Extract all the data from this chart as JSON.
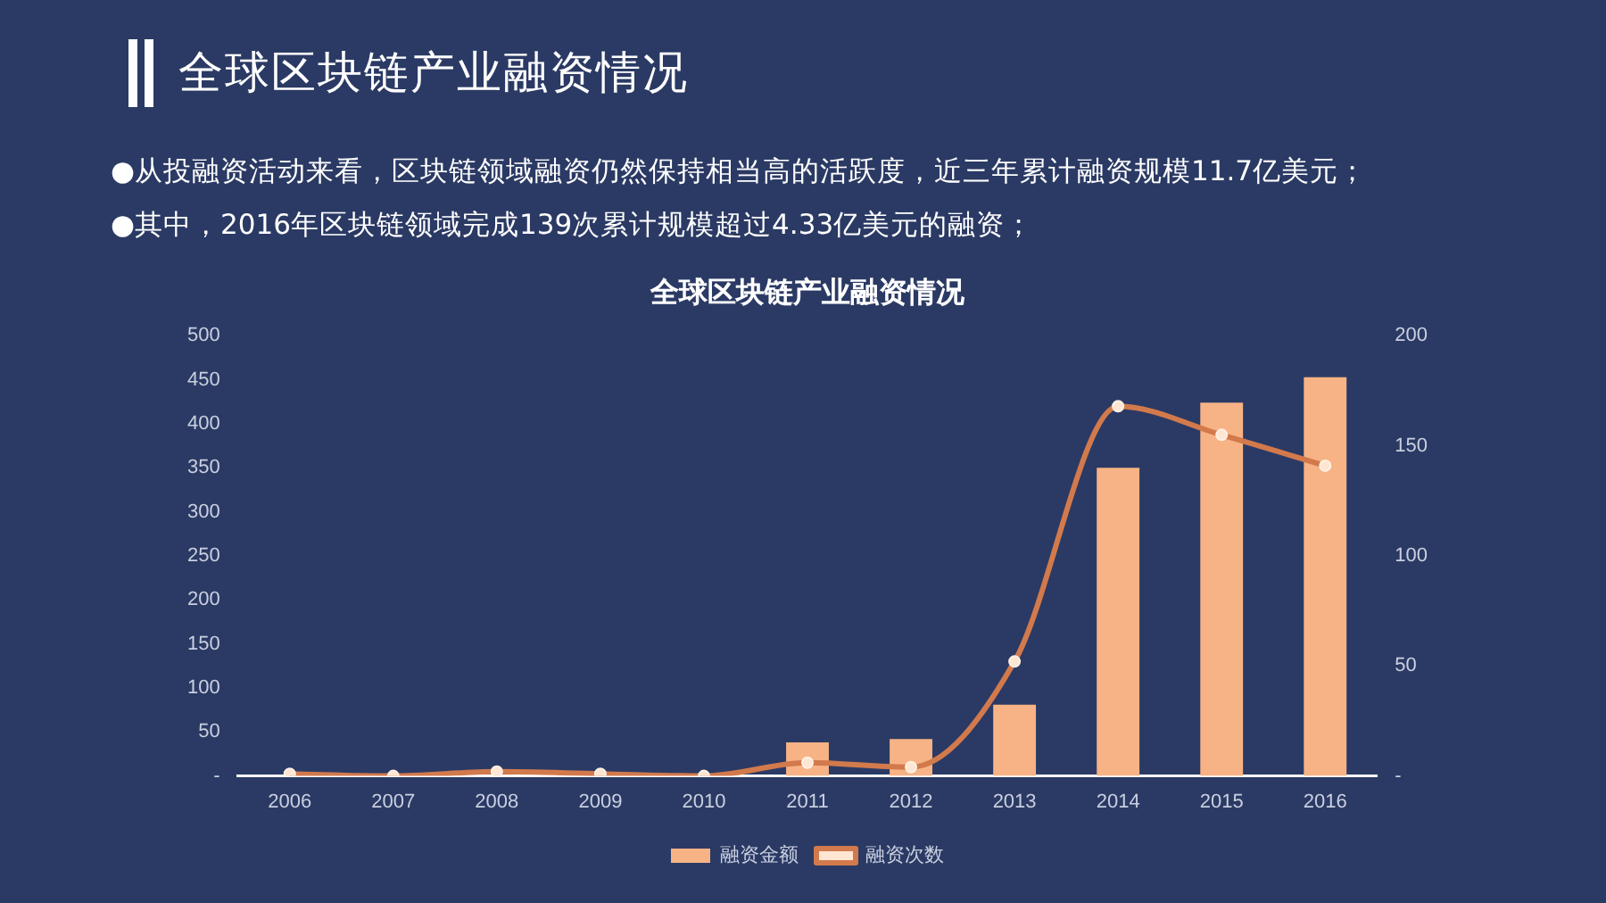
{
  "chart_data": {
    "type": "bar",
    "title": "全球区块链产业融资情况",
    "annotations": [
      "全球区块链产业融资情况",
      "●从投融资活动来看，区块链领域融资仍然保持相当高的活跃度，近三年累计融资规模11.7亿美元；",
      "●其中，2016年区块链领域完成139次累计规模超过4.33亿美元的融资；"
    ],
    "categories": [
      "2006",
      "2007",
      "2008",
      "2009",
      "2010",
      "2011",
      "2012",
      "2013",
      "2014",
      "2015",
      "2016"
    ],
    "series": [
      {
        "name": "融资金额",
        "color": "#f7b385",
        "values": [
          0,
          0,
          0,
          0,
          0,
          38,
          42,
          81,
          350,
          424,
          453
        ]
      },
      {
        "name": "融资次数",
        "type": "line",
        "axis": "y2",
        "color": "#d27a4c",
        "marker": "circle",
        "values": [
          1,
          0,
          2,
          1,
          0,
          6,
          4,
          52,
          168,
          155,
          141
        ]
      }
    ],
    "ylim": [
      0,
      500
    ],
    "yticks": [
      {
        "value": 0,
        "label": "-"
      },
      50,
      100,
      150,
      200,
      250,
      300,
      350,
      400,
      450,
      500
    ],
    "y2lim": [
      0,
      200
    ],
    "y2ticks": [
      {
        "value": 0,
        "label": "-"
      },
      50,
      100,
      150,
      200
    ],
    "grid": false,
    "legend": "bottom"
  }
}
